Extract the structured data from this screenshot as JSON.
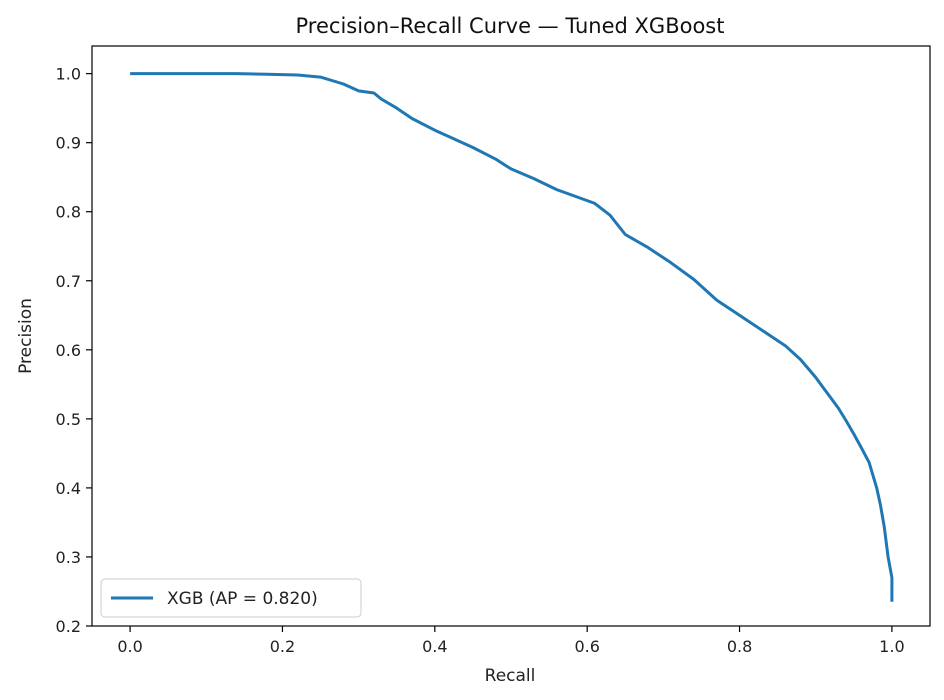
{
  "chart_data": {
    "type": "line",
    "title": "Precision–Recall Curve — Tuned XGBoost",
    "xlabel": "Recall",
    "ylabel": "Precision",
    "xlim": [
      -0.05,
      1.05
    ],
    "ylim": [
      0.2,
      1.04
    ],
    "xticks": [
      0.0,
      0.2,
      0.4,
      0.6,
      0.8,
      1.0
    ],
    "xtick_labels": [
      "0.0",
      "0.2",
      "0.4",
      "0.6",
      "0.8",
      "1.0"
    ],
    "yticks": [
      0.2,
      0.3,
      0.4,
      0.5,
      0.6,
      0.7,
      0.8,
      0.9,
      1.0
    ],
    "ytick_labels": [
      "0.2",
      "0.3",
      "0.4",
      "0.5",
      "0.6",
      "0.7",
      "0.8",
      "0.9",
      "1.0"
    ],
    "grid": false,
    "legend_position": "lower-left",
    "series": [
      {
        "name": "XGB (AP = 0.820)",
        "color": "#1f77b4",
        "x": [
          0.0,
          0.05,
          0.1,
          0.14,
          0.18,
          0.22,
          0.25,
          0.28,
          0.3,
          0.32,
          0.33,
          0.35,
          0.37,
          0.4,
          0.42,
          0.45,
          0.48,
          0.5,
          0.53,
          0.56,
          0.59,
          0.61,
          0.63,
          0.65,
          0.68,
          0.71,
          0.74,
          0.77,
          0.8,
          0.83,
          0.86,
          0.88,
          0.9,
          0.91,
          0.92,
          0.93,
          0.94,
          0.95,
          0.96,
          0.97,
          0.98,
          0.985,
          0.99,
          0.995,
          1.0,
          1.0
        ],
        "y": [
          1.0,
          1.0,
          1.0,
          1.0,
          0.999,
          0.998,
          0.995,
          0.985,
          0.975,
          0.972,
          0.963,
          0.95,
          0.935,
          0.918,
          0.908,
          0.893,
          0.876,
          0.862,
          0.848,
          0.832,
          0.82,
          0.812,
          0.795,
          0.767,
          0.748,
          0.726,
          0.702,
          0.672,
          0.65,
          0.628,
          0.606,
          0.586,
          0.56,
          0.545,
          0.53,
          0.515,
          0.497,
          0.478,
          0.458,
          0.437,
          0.4,
          0.375,
          0.343,
          0.3,
          0.27,
          0.235
        ]
      }
    ]
  }
}
